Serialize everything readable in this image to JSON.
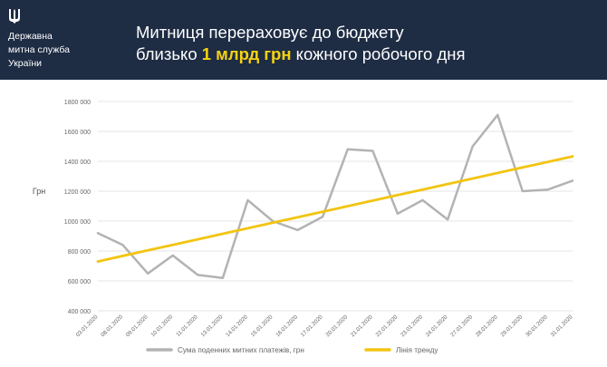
{
  "header": {
    "org_line1": "Державна",
    "org_line2": "митна служба",
    "org_line3": "України",
    "title_line1": "Митниця перераховує до бюджету",
    "title_prefix": "близько ",
    "title_highlight": "1 млрд грн",
    "title_suffix": " кожного робочого дня"
  },
  "colors": {
    "header_bg": "#1e2c44",
    "highlight": "#f5d213",
    "series_payments": "#b3b3b3",
    "series_trend": "#f2c412"
  },
  "icons": {
    "emblem": "trident-icon"
  },
  "chart_data": {
    "type": "line",
    "ylabel": "Грн",
    "ylim": [
      400000,
      1800000
    ],
    "yticks": [
      "400 000",
      "600 000",
      "800 000",
      "1000 000",
      "1200 000",
      "1400 000",
      "1600 000",
      "1800 000"
    ],
    "ytick_values": [
      400000,
      600000,
      800000,
      1000000,
      1200000,
      1400000,
      1600000,
      1800000
    ],
    "categories": [
      "03.01.2020",
      "08.01.2020",
      "09.01.2020",
      "10.01.2020",
      "11.01.2020",
      "13.01.2020",
      "14.01.2020",
      "15.01.2020",
      "16.01.2020",
      "17.01.2020",
      "20.01.2020",
      "21.01.2020",
      "22.01.2020",
      "23.01.2020",
      "24.01.2020",
      "27.01.2020",
      "28.01.2020",
      "29.01.2020",
      "30.01.2020",
      "31.01.2020"
    ],
    "grid": true,
    "legend_position": "bottom",
    "series": [
      {
        "name": "Сума поденних митних платежів, грн",
        "values": [
          920000,
          840000,
          650000,
          770000,
          640000,
          620000,
          1140000,
          1000000,
          940000,
          1030000,
          1480000,
          1470000,
          1050000,
          1140000,
          1010000,
          1500000,
          1710000,
          1200000,
          1210000,
          1270000
        ]
      },
      {
        "name": "Лінія тренду",
        "values": [
          730000,
          767000,
          804000,
          841000,
          878000,
          915000,
          952000,
          989000,
          1026000,
          1063000,
          1100000,
          1137000,
          1174000,
          1211000,
          1248000,
          1285000,
          1322000,
          1359000,
          1396000,
          1433000
        ]
      }
    ]
  }
}
